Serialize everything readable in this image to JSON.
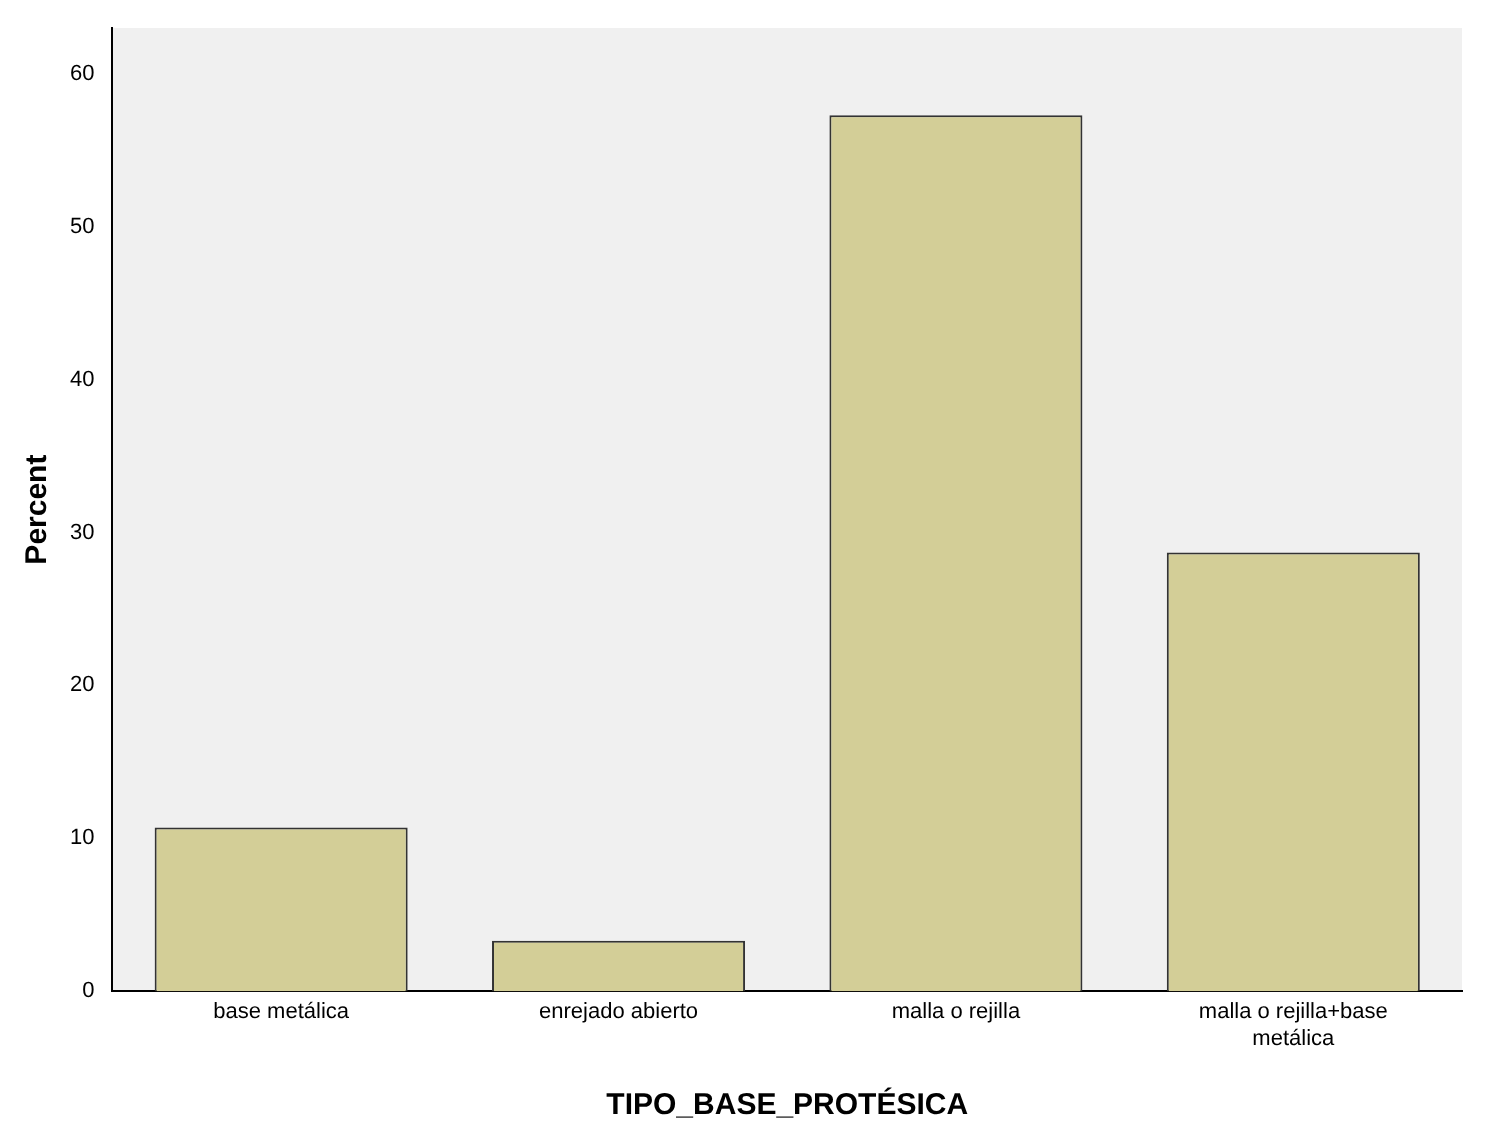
{
  "chart_data": {
    "type": "bar",
    "xlabel": "TIPO_BASE_PROTÉSICA",
    "ylabel": "Percent",
    "categories": [
      "base metálica",
      "enrejado abierto",
      "malla o rejilla",
      "malla o rejilla+base metálica"
    ],
    "values": [
      10.7,
      3.3,
      57.3,
      28.7
    ],
    "color": "#d3ce97",
    "ylim": [
      0,
      63
    ],
    "yticks": [
      0,
      10,
      20,
      30,
      40,
      50,
      60
    ],
    "grid": false,
    "legend": false
  }
}
